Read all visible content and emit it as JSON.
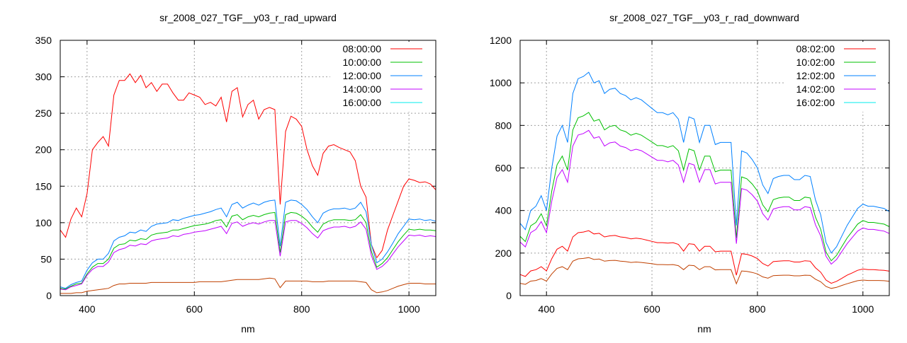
{
  "chart_data": [
    {
      "type": "line",
      "title": "sr_2008_027_TGF__y03_r_rad_upward",
      "xlabel": "nm",
      "ylabel": "",
      "xlim": [
        350,
        1050
      ],
      "ylim": [
        0,
        350
      ],
      "xticks": [
        400,
        600,
        800,
        1000
      ],
      "yticks": [
        0,
        50,
        100,
        150,
        200,
        250,
        300,
        350
      ],
      "grid": true,
      "legend_position": "top-right",
      "x_start": 350,
      "x_step": 10,
      "series": [
        {
          "name": "08:00:00",
          "color": "#ff0000",
          "values": [
            90,
            80,
            105,
            120,
            108,
            140,
            200,
            210,
            218,
            205,
            275,
            295,
            295,
            304,
            292,
            302,
            285,
            292,
            280,
            290,
            290,
            278,
            268,
            268,
            278,
            275,
            272,
            262,
            265,
            260,
            272,
            238,
            280,
            285,
            245,
            262,
            268,
            242,
            255,
            258,
            255,
            125,
            225,
            246,
            242,
            232,
            200,
            178,
            165,
            195,
            205,
            207,
            203,
            200,
            197,
            185,
            150,
            135,
            70,
            52,
            62,
            90,
            110,
            130,
            150,
            160,
            158,
            155,
            156,
            153,
            145
          ]
        },
        {
          "name": "10:00:00",
          "color": "#00c000",
          "values": [
            10,
            9,
            13,
            16,
            17,
            30,
            39,
            44,
            44,
            50,
            65,
            70,
            71,
            76,
            75,
            78,
            77,
            83,
            85,
            86,
            87,
            90,
            90,
            92,
            94,
            96,
            97,
            98,
            100,
            103,
            104,
            94,
            109,
            111,
            104,
            108,
            110,
            108,
            111,
            113,
            114,
            59,
            111,
            114,
            113,
            109,
            103,
            94,
            87,
            98,
            102,
            104,
            104,
            104,
            103,
            104,
            111,
            100,
            61,
            39,
            44,
            52,
            63,
            74,
            83,
            91,
            90,
            91,
            90,
            90,
            89
          ]
        },
        {
          "name": "12:00:00",
          "color": "#0080ff",
          "values": [
            12,
            10,
            15,
            18,
            20,
            35,
            45,
            50,
            50,
            58,
            75,
            80,
            82,
            87,
            86,
            90,
            88,
            95,
            98,
            99,
            100,
            104,
            103,
            106,
            108,
            110,
            111,
            113,
            115,
            118,
            120,
            108,
            125,
            128,
            120,
            124,
            127,
            124,
            128,
            130,
            131,
            68,
            128,
            131,
            130,
            125,
            118,
            108,
            100,
            113,
            117,
            119,
            119,
            120,
            118,
            120,
            128,
            115,
            70,
            45,
            50,
            60,
            72,
            85,
            95,
            105,
            104,
            105,
            103,
            104,
            102
          ]
        },
        {
          "name": "14:00:00",
          "color": "#c000ff",
          "values": [
            9,
            8,
            12,
            14,
            16,
            28,
            36,
            40,
            40,
            46,
            59,
            63,
            65,
            69,
            68,
            71,
            70,
            75,
            77,
            78,
            79,
            82,
            81,
            84,
            85,
            87,
            88,
            89,
            91,
            93,
            95,
            85,
            99,
            101,
            95,
            98,
            100,
            98,
            101,
            103,
            103,
            54,
            101,
            103,
            103,
            99,
            93,
            85,
            79,
            89,
            92,
            94,
            94,
            95,
            93,
            95,
            101,
            91,
            55,
            36,
            40,
            47,
            57,
            67,
            75,
            83,
            82,
            83,
            81,
            82,
            81
          ]
        },
        {
          "name": "16:00:00",
          "color": "#00eeee",
          "values": []
        },
        {
          "name": "",
          "color": "#c04000",
          "values": [
            3,
            3,
            3,
            4,
            4,
            6,
            7,
            8,
            9,
            10,
            14,
            16,
            16,
            17,
            17,
            17,
            17,
            18,
            18,
            18,
            18,
            18,
            18,
            18,
            18,
            18,
            19,
            19,
            19,
            19,
            19,
            20,
            21,
            22,
            22,
            22,
            22,
            22,
            23,
            24,
            23,
            11,
            20,
            20,
            20,
            20,
            20,
            19,
            19,
            19,
            20,
            20,
            20,
            20,
            20,
            20,
            19,
            18,
            8,
            4,
            5,
            7,
            10,
            13,
            15,
            17,
            17,
            17,
            16,
            16,
            16
          ]
        }
      ]
    },
    {
      "type": "line",
      "title": "sr_2008_027_TGF__y03_r_rad_downward",
      "xlabel": "nm",
      "ylabel": "",
      "xlim": [
        350,
        1050
      ],
      "ylim": [
        0,
        1200
      ],
      "xticks": [
        400,
        600,
        800,
        1000
      ],
      "yticks": [
        0,
        200,
        400,
        600,
        800,
        1000,
        1200
      ],
      "grid": true,
      "legend_position": "top-right",
      "x_start": 350,
      "x_step": 10,
      "series": [
        {
          "name": "08:02:00",
          "color": "#ff0000",
          "values": [
            99,
            90,
            116,
            122,
            136,
            116,
            174,
            218,
            232,
            209,
            276,
            296,
            299,
            305,
            290,
            293,
            276,
            281,
            283,
            276,
            273,
            267,
            270,
            267,
            261,
            255,
            249,
            249,
            247,
            249,
            241,
            209,
            244,
            241,
            209,
            232,
            232,
            206,
            209,
            209,
            209,
            96,
            197,
            194,
            186,
            174,
            151,
            139,
            160,
            162,
            164,
            164,
            158,
            158,
            164,
            162,
            131,
            110,
            73,
            58,
            67,
            81,
            96,
            107,
            119,
            125,
            122,
            122,
            120,
            119,
            115
          ]
        },
        {
          "name": "10:02:00",
          "color": "#00c000",
          "values": [
            279,
            254,
            328,
            344,
            385,
            328,
            492,
            615,
            656,
            590,
            779,
            836,
            845,
            861,
            820,
            828,
            779,
            795,
            800,
            779,
            771,
            754,
            763,
            754,
            738,
            722,
            705,
            705,
            697,
            705,
            681,
            590,
            689,
            681,
            590,
            656,
            656,
            582,
            590,
            590,
            590,
            271,
            558,
            549,
            525,
            492,
            426,
            394,
            451,
            459,
            463,
            463,
            447,
            447,
            463,
            459,
            369,
            312,
            205,
            164,
            189,
            230,
            271,
            303,
            336,
            353,
            344,
            344,
            340,
            336,
            324
          ]
        },
        {
          "name": "12:02:00",
          "color": "#0080ff",
          "values": [
            340,
            310,
            400,
            420,
            470,
            400,
            600,
            750,
            800,
            720,
            950,
            1020,
            1030,
            1050,
            1000,
            1010,
            950,
            970,
            975,
            950,
            940,
            920,
            930,
            920,
            900,
            880,
            860,
            860,
            850,
            860,
            830,
            720,
            840,
            830,
            720,
            800,
            800,
            710,
            720,
            720,
            720,
            330,
            680,
            670,
            640,
            600,
            520,
            480,
            550,
            560,
            565,
            565,
            545,
            545,
            565,
            560,
            450,
            380,
            250,
            200,
            230,
            280,
            330,
            370,
            410,
            430,
            420,
            420,
            415,
            410,
            395
          ]
        },
        {
          "name": "14:02:00",
          "color": "#c000ff",
          "values": [
            252,
            229,
            296,
            311,
            348,
            296,
            444,
            555,
            592,
            533,
            703,
            755,
            762,
            777,
            740,
            747,
            703,
            718,
            722,
            703,
            696,
            681,
            688,
            681,
            666,
            651,
            636,
            636,
            629,
            636,
            614,
            533,
            622,
            614,
            533,
            592,
            592,
            525,
            533,
            533,
            533,
            244,
            503,
            496,
            474,
            444,
            385,
            355,
            407,
            414,
            418,
            418,
            403,
            403,
            418,
            414,
            333,
            281,
            185,
            148,
            170,
            207,
            244,
            274,
            303,
            318,
            311,
            311,
            307,
            303,
            292
          ]
        },
        {
          "name": "16:02:00",
          "color": "#00eeee",
          "values": []
        },
        {
          "name": "",
          "color": "#c04000",
          "values": [
            58,
            53,
            68,
            71,
            80,
            68,
            102,
            128,
            136,
            122,
            162,
            173,
            175,
            179,
            170,
            172,
            162,
            165,
            166,
            162,
            160,
            156,
            158,
            156,
            153,
            150,
            146,
            146,
            145,
            146,
            141,
            122,
            143,
            141,
            122,
            136,
            136,
            121,
            122,
            122,
            122,
            56,
            116,
            114,
            109,
            102,
            88,
            82,
            94,
            95,
            96,
            96,
            93,
            93,
            96,
            95,
            77,
            65,
            43,
            34,
            39,
            48,
            56,
            63,
            70,
            73,
            71,
            71,
            71,
            70,
            67
          ]
        }
      ]
    }
  ]
}
